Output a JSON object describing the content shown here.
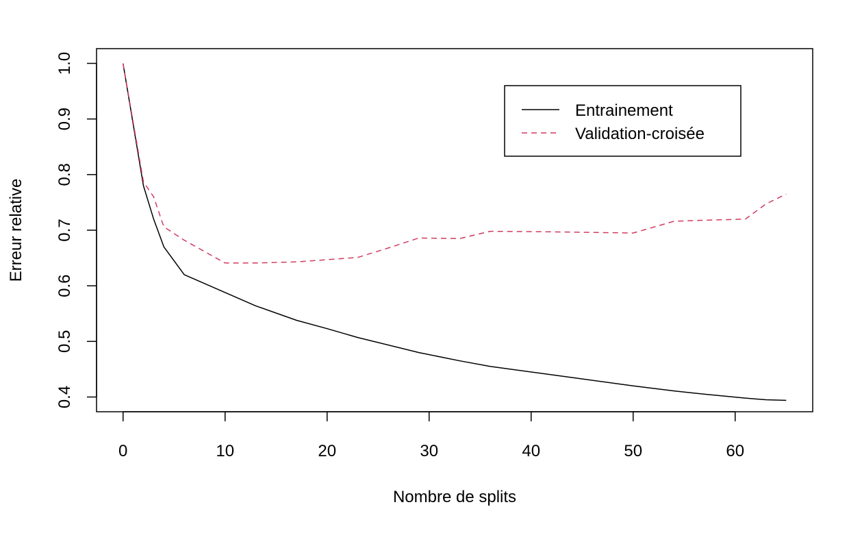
{
  "chart_data": {
    "type": "line",
    "title": "",
    "xlabel": "Nombre de splits",
    "ylabel": "Erreur relative",
    "xlim": [
      -2.6,
      67.6
    ],
    "ylim": [
      0.3735,
      1.0265
    ],
    "xticks": [
      0,
      10,
      20,
      30,
      40,
      50,
      60
    ],
    "yticks": [
      0.4,
      0.5,
      0.6,
      0.7,
      0.8,
      0.9,
      1.0
    ],
    "ytick_labels": [
      "0.4",
      "0.5",
      "0.6",
      "0.7",
      "0.8",
      "0.9",
      "1.0"
    ],
    "grid": false,
    "legend_position": "top-right",
    "series": [
      {
        "name": "Entrainement",
        "color": "#000000",
        "dash": "solid",
        "x": [
          0,
          2,
          3,
          4,
          6,
          7,
          10,
          13,
          17,
          20,
          23,
          29,
          33,
          36,
          42,
          50,
          54,
          57,
          61,
          63,
          65
        ],
        "y": [
          1.0,
          0.78,
          0.72,
          0.67,
          0.62,
          0.612,
          0.588,
          0.564,
          0.538,
          0.523,
          0.507,
          0.48,
          0.465,
          0.455,
          0.44,
          0.42,
          0.411,
          0.405,
          0.398,
          0.395,
          0.394
        ]
      },
      {
        "name": "Validation-croisée",
        "color": "#D03A5E",
        "dash": "dashed",
        "x": [
          0,
          2,
          3,
          4,
          6,
          10,
          13,
          17,
          20,
          23,
          26,
          29,
          33,
          36,
          42,
          50,
          54,
          57,
          61,
          63,
          65
        ],
        "y": [
          1.0,
          0.787,
          0.76,
          0.706,
          0.682,
          0.641,
          0.641,
          0.643,
          0.647,
          0.651,
          0.668,
          0.686,
          0.685,
          0.698,
          0.697,
          0.695,
          0.716,
          0.718,
          0.72,
          0.747,
          0.765
        ]
      }
    ]
  }
}
